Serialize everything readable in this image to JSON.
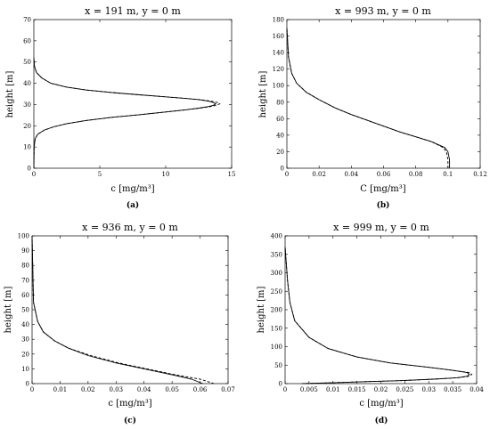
{
  "chart_data": [
    {
      "type": "line",
      "title": "x = 191 m, y = 0 m",
      "xlabel": "c [mg/m³]",
      "ylabel": "height [m]",
      "caption": "(a)",
      "xlim": [
        0,
        15
      ],
      "ylim": [
        0,
        70
      ],
      "xticks": [
        0,
        5,
        10,
        15
      ],
      "xtick_labels": [
        "0",
        "5",
        "10",
        "15"
      ],
      "yticks": [
        0,
        10,
        20,
        30,
        40,
        50,
        60,
        70
      ],
      "ytick_labels": [
        "0",
        "10",
        "20",
        "30",
        "40",
        "50",
        "60",
        "70"
      ],
      "grid": false,
      "legend": "none",
      "series": [
        {
          "style": "solid",
          "x": [
            0,
            0.02,
            0.1,
            0.3,
            0.8,
            1.5,
            2.5,
            4,
            6,
            8,
            10,
            11.5,
            12.5,
            13.2,
            13.6,
            13.8,
            13.6,
            13.2,
            12.5,
            11.3,
            9.8,
            8,
            6,
            4,
            2.5,
            1.3,
            0.6,
            0.2,
            0.05,
            0
          ],
          "y": [
            0,
            10,
            14,
            16,
            18,
            19.5,
            21,
            22.5,
            24,
            25.2,
            26.5,
            27.5,
            28.3,
            29,
            29.6,
            30.3,
            31,
            31.6,
            32.3,
            33,
            33.7,
            34.6,
            35.6,
            36.8,
            38.2,
            40,
            42.5,
            45,
            48,
            52
          ]
        },
        {
          "style": "dashed",
          "x": [
            0,
            0.02,
            0.1,
            0.3,
            0.8,
            1.5,
            2.5,
            4,
            6,
            8,
            10,
            11.5,
            12.6,
            13.4,
            13.8,
            14.1,
            13.9,
            13.4,
            12.6,
            11.3,
            9.8,
            8,
            6,
            4,
            2.5,
            1.3,
            0.6,
            0.2,
            0.05,
            0
          ],
          "y": [
            0,
            10,
            14,
            16,
            18,
            19.5,
            21,
            22.5,
            24,
            25.2,
            26.5,
            27.5,
            28.3,
            29,
            29.6,
            30.3,
            31,
            31.6,
            32.3,
            33,
            33.7,
            34.6,
            35.6,
            36.8,
            38.2,
            40,
            42.5,
            45,
            48,
            52
          ]
        }
      ]
    },
    {
      "type": "line",
      "title": "x = 993 m, y = 0 m",
      "xlabel": "C [mg/m³]",
      "ylabel": "height [m]",
      "caption": "(b)",
      "xlim": [
        0,
        0.12
      ],
      "ylim": [
        0,
        180
      ],
      "xticks": [
        0,
        0.02,
        0.04,
        0.06,
        0.08,
        0.1,
        0.12
      ],
      "xtick_labels": [
        "0",
        "0.02",
        "0.04",
        "0.06",
        "0.08",
        "0.1",
        "0.12"
      ],
      "yticks": [
        0,
        20,
        40,
        60,
        80,
        100,
        120,
        140,
        160,
        180
      ],
      "ytick_labels": [
        "0",
        "20",
        "40",
        "60",
        "80",
        "100",
        "120",
        "140",
        "160",
        "180"
      ],
      "grid": false,
      "legend": "none",
      "series": [
        {
          "style": "solid",
          "x": [
            0.101,
            0.101,
            0.1,
            0.098,
            0.09,
            0.08,
            0.07,
            0.06,
            0.05,
            0.04,
            0.03,
            0.02,
            0.012,
            0.006,
            0.003,
            0.001,
            0
          ],
          "y": [
            0,
            10,
            20,
            25,
            32,
            38,
            44,
            51,
            58,
            65,
            73,
            83,
            92,
            103,
            115,
            135,
            170
          ]
        },
        {
          "style": "dashed",
          "x": [
            0.1,
            0.1,
            0.099,
            0.097,
            0.09,
            0.08,
            0.07,
            0.06,
            0.05,
            0.04,
            0.03,
            0.02,
            0.012,
            0.006,
            0.003,
            0.001,
            0
          ],
          "y": [
            0,
            10,
            20,
            25,
            32,
            38,
            44,
            51,
            58,
            65,
            73,
            83,
            92,
            103,
            115,
            135,
            170
          ]
        }
      ]
    },
    {
      "type": "line",
      "title": "x = 936 m, y = 0 m",
      "xlabel": "c [mg/m³]",
      "ylabel": "height [m]",
      "caption": "(c)",
      "xlim": [
        0,
        0.07
      ],
      "ylim": [
        0,
        100
      ],
      "xticks": [
        0,
        0.01,
        0.02,
        0.03,
        0.04,
        0.05,
        0.06,
        0.07
      ],
      "xtick_labels": [
        "0",
        "0.01",
        "0.02",
        "0.03",
        "0.04",
        "0.05",
        "0.06",
        "0.07"
      ],
      "yticks": [
        0,
        10,
        20,
        30,
        40,
        50,
        60,
        70,
        80,
        90,
        100
      ],
      "ytick_labels": [
        "0",
        "10",
        "20",
        "30",
        "40",
        "50",
        "60",
        "70",
        "80",
        "90",
        "100"
      ],
      "grid": false,
      "legend": "none",
      "series": [
        {
          "style": "solid",
          "x": [
            0.061,
            0.057,
            0.05,
            0.04,
            0.03,
            0.02,
            0.013,
            0.008,
            0.004,
            0.002,
            0.0005,
            0
          ],
          "y": [
            0,
            3,
            6,
            10,
            14,
            19,
            24,
            29,
            35,
            42,
            55,
            100
          ]
        },
        {
          "style": "dashed",
          "x": [
            0.065,
            0.06,
            0.051,
            0.041,
            0.031,
            0.021,
            0.013,
            0.008,
            0.004,
            0.002,
            0.0005,
            0
          ],
          "y": [
            0,
            3,
            6,
            10,
            14,
            19,
            24,
            29,
            35,
            42,
            55,
            100
          ]
        }
      ]
    },
    {
      "type": "line",
      "title": "x = 999 m, y = 0 m",
      "xlabel": "c [mg/m³]",
      "ylabel": "height [m]",
      "caption": "(d)",
      "xlim": [
        0,
        0.04
      ],
      "ylim": [
        0,
        400
      ],
      "xticks": [
        0,
        0.005,
        0.01,
        0.015,
        0.02,
        0.025,
        0.03,
        0.035,
        0.04
      ],
      "xtick_labels": [
        "0",
        "0.005",
        "0.01",
        "0.015",
        "0.02",
        "0.025",
        "0.03",
        "0.035",
        "0.04"
      ],
      "yticks": [
        0,
        50,
        100,
        150,
        200,
        250,
        300,
        350,
        400
      ],
      "ytick_labels": [
        "0",
        "50",
        "100",
        "150",
        "200",
        "250",
        "300",
        "350",
        "400"
      ],
      "grid": false,
      "legend": "none",
      "series": [
        {
          "style": "solid",
          "x": [
            0.0035,
            0.009,
            0.016,
            0.024,
            0.031,
            0.036,
            0.038,
            0.0385,
            0.038,
            0.035,
            0.03,
            0.022,
            0.015,
            0.009,
            0.005,
            0.002,
            0.001,
            0.0005,
            0
          ],
          "y": [
            0,
            2,
            5,
            8,
            12,
            16,
            20,
            25,
            30,
            36,
            44,
            56,
            72,
            95,
            125,
            170,
            220,
            280,
            370
          ]
        },
        {
          "style": "dashed",
          "x": [
            0.0035,
            0.009,
            0.016,
            0.024,
            0.031,
            0.036,
            0.0385,
            0.039,
            0.0385,
            0.035,
            0.03,
            0.022,
            0.015,
            0.009,
            0.005,
            0.002,
            0.001,
            0.0005,
            0
          ],
          "y": [
            0,
            2,
            5,
            8,
            12,
            16,
            20,
            25,
            30,
            36,
            44,
            56,
            72,
            95,
            125,
            170,
            220,
            280,
            370
          ]
        }
      ]
    }
  ]
}
